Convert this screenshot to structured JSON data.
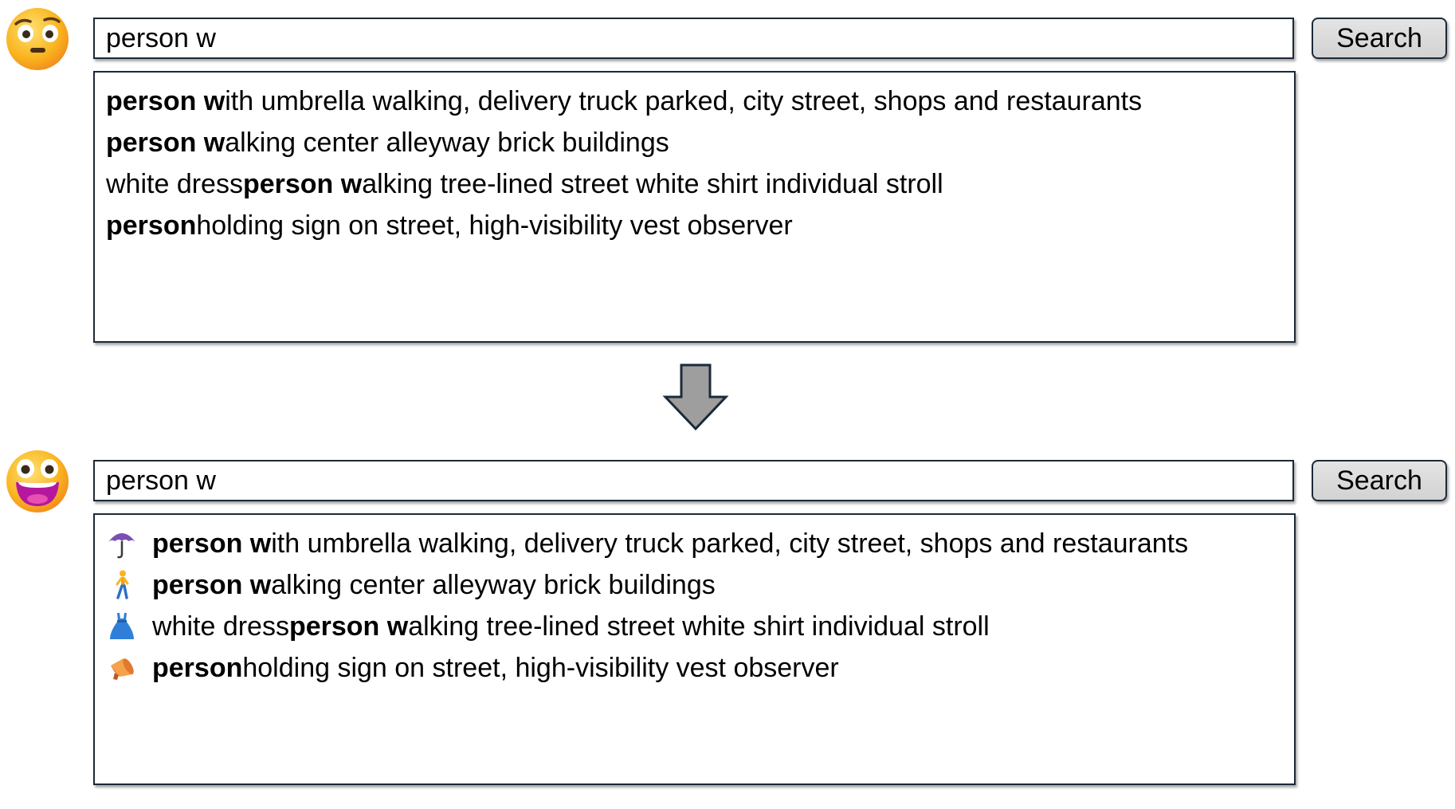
{
  "before": {
    "avatar_icon": "skeptical-face-icon",
    "search": {
      "value": "person w"
    },
    "search_button_label": "Search",
    "suggestions": [
      {
        "pre": "",
        "bold": "person w",
        "post": "ith umbrella walking, delivery truck parked, city street, shops and restaurants"
      },
      {
        "pre": "",
        "bold": "person w",
        "post": "alking center alleyway brick buildings"
      },
      {
        "pre": "white dress ",
        "bold": "person w",
        "post": "alking tree-lined street white shirt individual stroll"
      },
      {
        "pre": "",
        "bold": "person",
        "post": " holding sign on street, high-visibility vest observer"
      }
    ]
  },
  "transition_icon": "down-arrow-icon",
  "after": {
    "avatar_icon": "grinning-face-icon",
    "search": {
      "value": "person w"
    },
    "search_button_label": "Search",
    "suggestions": [
      {
        "icon": "umbrella-icon",
        "pre": "",
        "bold": "person w",
        "post": "ith umbrella walking, delivery truck parked, city street, shops and restaurants"
      },
      {
        "icon": "person-walking-icon",
        "pre": "",
        "bold": "person w",
        "post": "alking center alleyway brick buildings"
      },
      {
        "icon": "dress-icon",
        "pre": "white dress ",
        "bold": "person w",
        "post": "alking tree-lined street white shirt individual stroll"
      },
      {
        "icon": "megaphone-icon",
        "pre": "",
        "bold": "person",
        "post": " holding sign on street, high-visibility vest observer"
      }
    ]
  },
  "colors": {
    "border": "#1c2a38",
    "button_bg": "#d9d9d9",
    "arrow_fill": "#9e9e9e",
    "emoji_yellow": "#f9b51f",
    "emoji_mouth": "#b5179e"
  }
}
